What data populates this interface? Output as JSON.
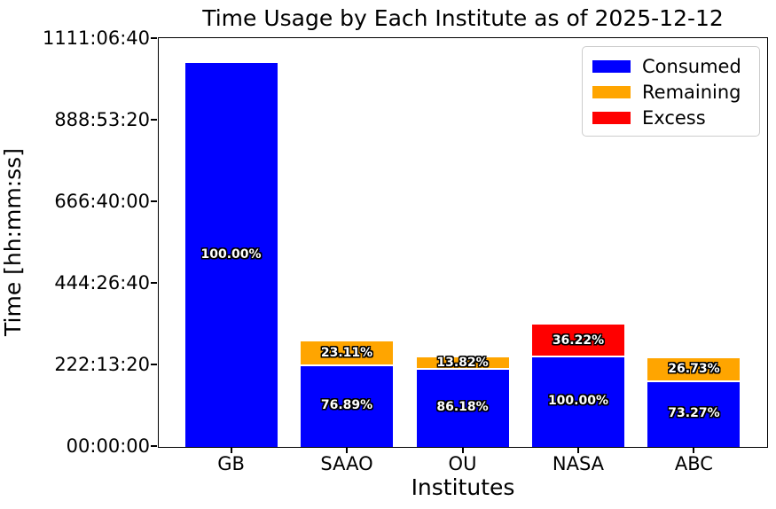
{
  "chart_data": {
    "type": "bar",
    "stacked": true,
    "title": "Time Usage by Each Institute as of 2025-12-12",
    "xlabel": "Institutes",
    "ylabel": "Time [hh:mm:ss]",
    "categories": [
      "GB",
      "SAAO",
      "OU",
      "NASA",
      "ABC"
    ],
    "ylim_seconds": [
      0,
      4000000
    ],
    "grid": false,
    "yticks": {
      "seconds": [
        0,
        800000,
        1600000,
        2400000,
        3200000,
        4000000
      ],
      "labels": [
        "00:00:00",
        "222:13:20",
        "444:26:40",
        "666:40:00",
        "888:53:20",
        "1111:06:40"
      ]
    },
    "legend": {
      "position": "upper-right",
      "entries": [
        {
          "label": "Consumed",
          "color": "#0000ff"
        },
        {
          "label": "Remaining",
          "color": "#ffa500"
        },
        {
          "label": "Excess",
          "color": "#ff0000"
        }
      ]
    },
    "series": [
      {
        "name": "Consumed",
        "color": "#0000ff",
        "values_seconds": [
          3765000,
          795400,
          757800,
          879300,
          638000
        ],
        "percent_labels": [
          "100.00%",
          "76.89%",
          "86.18%",
          "100.00%",
          "73.27%"
        ]
      },
      {
        "name": "Remaining",
        "color": "#ffa500",
        "values_seconds": [
          0,
          239100,
          121500,
          0,
          232700
        ],
        "percent_labels": [
          "",
          "23.11%",
          "13.82%",
          "",
          "26.73%"
        ]
      },
      {
        "name": "Excess",
        "color": "#ff0000",
        "values_seconds": [
          0,
          0,
          0,
          318500,
          0
        ],
        "percent_labels": [
          "",
          "",
          "",
          "36.22%",
          ""
        ]
      }
    ]
  }
}
